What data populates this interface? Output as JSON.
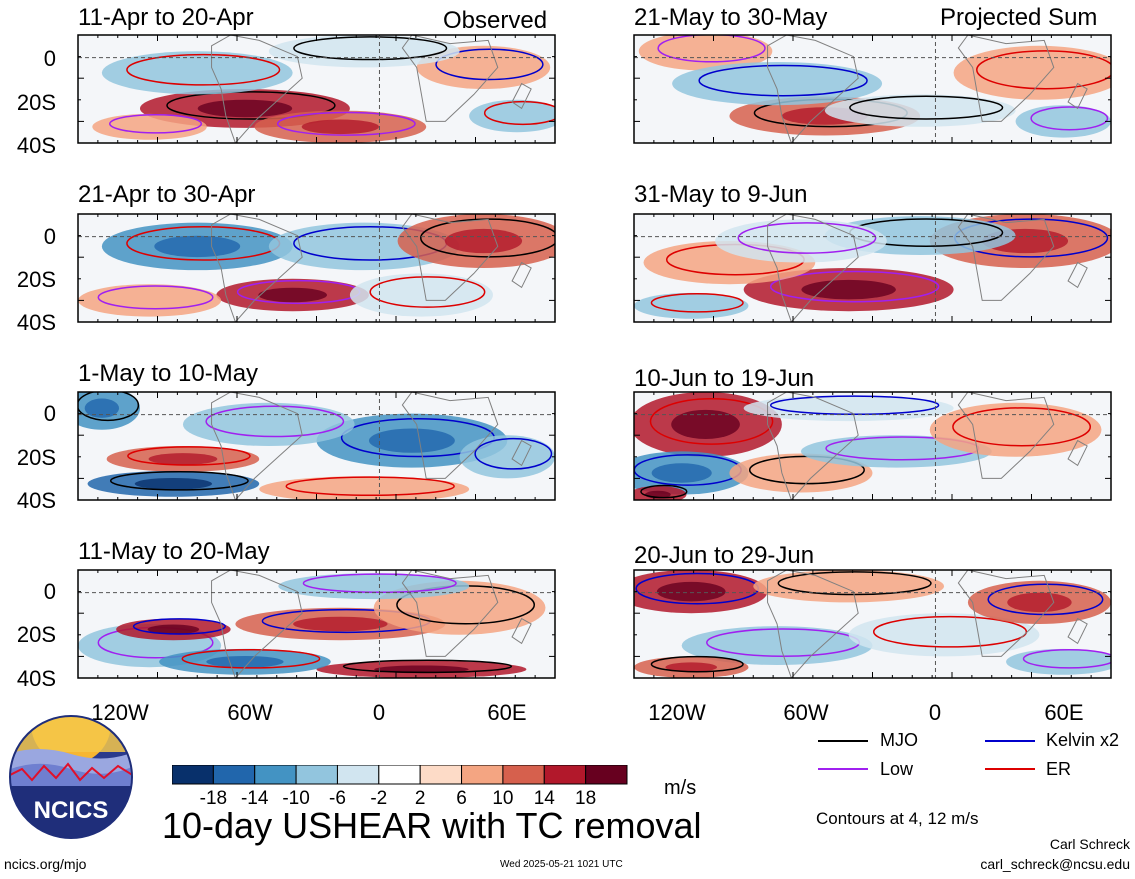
{
  "left_column_header": "Observed",
  "right_column_header": "Projected Sum",
  "panels": [
    {
      "title": "11-Apr to 20-Apr"
    },
    {
      "title": "21-Apr to 30-Apr"
    },
    {
      "title": "1-May to 10-May"
    },
    {
      "title": "11-May to 20-May"
    },
    {
      "title": "21-May to 30-May"
    },
    {
      "title": "31-May to 9-Jun"
    },
    {
      "title": "10-Jun to 19-Jun"
    },
    {
      "title": "20-Jun to 29-Jun"
    }
  ],
  "y_axis_labels": [
    "0",
    "20S",
    "40S"
  ],
  "x_axis_labels": [
    "120W",
    "60W",
    "0",
    "60E"
  ],
  "colorbar": {
    "ticks": [
      "-18",
      "-14",
      "-10",
      "-6",
      "-2",
      "2",
      "6",
      "10",
      "14",
      "18"
    ],
    "units": "m/s",
    "colors": [
      "#08306b",
      "#2166ac",
      "#4393c3",
      "#92c5de",
      "#d1e5f0",
      "#ffffff",
      "#fddbc7",
      "#f4a582",
      "#d6604d",
      "#b2182b",
      "#67001f"
    ]
  },
  "main_title": "10-day USHEAR with TC removal",
  "legend": {
    "items": [
      {
        "label": "MJO",
        "color": "#000000"
      },
      {
        "label": "Kelvin x2",
        "color": "#0000cc"
      },
      {
        "label": "Low",
        "color": "#a020f0"
      },
      {
        "label": "ER",
        "color": "#dd0000"
      }
    ],
    "note": "Contours at 4, 12 m/s"
  },
  "logo_text": "NCICS",
  "footer": {
    "url": "ncics.org/mjo",
    "timestamp": "Wed 2025-05-21 1021 UTC",
    "author": "Carl Schreck",
    "email": "carl_schreck@ncsu.edu"
  }
}
